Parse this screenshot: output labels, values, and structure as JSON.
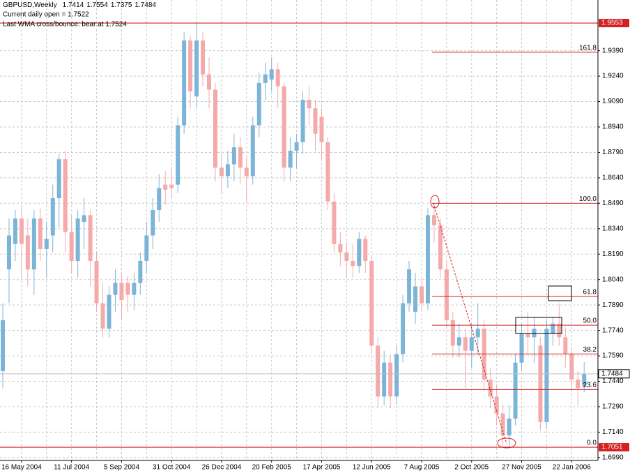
{
  "chart_data": {
    "type": "candlestick",
    "title": "GBPUSD,Weekly",
    "annotations": [
      "Current daily open = 1.7522",
      "Last WMA cross/bounce: bear at 1.7524"
    ],
    "categories": [
      null,
      null,
      null,
      "16 May 2004",
      null,
      null,
      null,
      null,
      null,
      null,
      null,
      "11 Jul 2004",
      null,
      null,
      null,
      null,
      null,
      null,
      null,
      "5 Sep 2004",
      null,
      null,
      null,
      null,
      null,
      null,
      null,
      "31 Oct 2004",
      null,
      null,
      null,
      null,
      null,
      null,
      null,
      "26 Dec 2004",
      null,
      null,
      null,
      null,
      null,
      null,
      null,
      "20 Feb 2005",
      null,
      null,
      null,
      null,
      null,
      null,
      null,
      "17 Apr 2005",
      null,
      null,
      null,
      null,
      null,
      null,
      null,
      "12 Jun 2005",
      null,
      null,
      null,
      null,
      null,
      null,
      null,
      "7 Aug 2005",
      null,
      null,
      null,
      null,
      null,
      null,
      null,
      "2 Oct 2005",
      null,
      null,
      null,
      null,
      null,
      null,
      null,
      "27 Nov 2005",
      null,
      null,
      null,
      null,
      null,
      null,
      null,
      "22 Jan 2006",
      null,
      null
    ],
    "open": [
      1.75,
      1.81,
      1.825,
      1.84,
      1.83,
      1.81,
      1.84,
      1.822,
      1.83,
      1.852,
      1.875,
      1.832,
      1.815,
      1.838,
      1.842,
      1.815,
      1.79,
      1.775,
      1.795,
      1.802,
      1.802,
      1.795,
      1.802,
      1.815,
      1.83,
      1.845,
      1.86,
      1.86,
      1.86,
      1.895,
      1.945,
      1.912,
      1.945,
      1.925,
      1.916,
      1.87,
      1.865,
      1.872,
      1.882,
      1.87,
      1.865,
      1.895,
      1.92,
      1.922,
      1.928,
      1.918,
      1.87,
      1.88,
      1.885,
      1.91,
      1.905,
      1.9,
      1.885,
      1.85,
      1.825,
      1.82,
      1.815,
      1.812,
      1.828,
      1.815,
      1.765,
      1.735,
      1.755,
      1.735,
      1.76,
      1.79,
      1.785,
      1.8,
      1.79,
      1.842,
      1.836,
      1.81,
      1.78,
      1.765,
      1.77,
      1.762,
      1.77,
      1.775,
      1.745,
      1.735,
      1.725,
      1.712,
      1.722,
      1.755,
      1.772,
      1.77,
      1.765,
      1.72,
      1.772,
      1.778,
      1.77,
      1.76,
      1.745,
      1.7414
    ],
    "high": [
      1.79,
      1.84,
      1.845,
      1.848,
      1.84,
      1.845,
      1.846,
      1.838,
      1.86,
      1.878,
      1.88,
      1.842,
      1.845,
      1.852,
      1.845,
      1.82,
      1.802,
      1.8,
      1.81,
      1.808,
      1.806,
      1.808,
      1.82,
      1.838,
      1.852,
      1.866,
      1.868,
      1.87,
      1.9,
      1.95,
      1.948,
      1.955,
      1.95,
      1.935,
      1.92,
      1.878,
      1.88,
      1.89,
      1.888,
      1.876,
      1.9,
      1.926,
      1.932,
      1.935,
      1.932,
      1.92,
      1.888,
      1.89,
      1.915,
      1.918,
      1.91,
      1.905,
      1.888,
      1.855,
      1.832,
      1.826,
      1.825,
      1.832,
      1.83,
      1.818,
      1.77,
      1.762,
      1.76,
      1.765,
      1.795,
      1.815,
      1.808,
      1.805,
      1.846,
      1.849,
      1.84,
      1.815,
      1.785,
      1.778,
      1.775,
      1.778,
      1.79,
      1.78,
      1.752,
      1.742,
      1.73,
      1.73,
      1.76,
      1.778,
      1.785,
      1.782,
      1.77,
      1.78,
      1.782,
      1.79,
      1.776,
      1.764,
      1.75,
      1.7554
    ],
    "low": [
      1.74,
      1.79,
      1.815,
      1.805,
      1.8,
      1.795,
      1.815,
      1.805,
      1.82,
      1.835,
      1.82,
      1.808,
      1.805,
      1.822,
      1.8,
      1.785,
      1.77,
      1.77,
      1.785,
      1.78,
      1.785,
      1.786,
      1.795,
      1.808,
      1.822,
      1.838,
      1.848,
      1.852,
      1.855,
      1.89,
      1.905,
      1.905,
      1.918,
      1.905,
      1.862,
      1.855,
      1.858,
      1.862,
      1.86,
      1.85,
      1.86,
      1.888,
      1.91,
      1.915,
      1.905,
      1.862,
      1.862,
      1.87,
      1.878,
      1.895,
      1.88,
      1.875,
      1.845,
      1.82,
      1.812,
      1.805,
      1.805,
      1.808,
      1.808,
      1.76,
      1.728,
      1.73,
      1.728,
      1.73,
      1.755,
      1.785,
      1.778,
      1.785,
      1.786,
      1.826,
      1.805,
      1.775,
      1.758,
      1.758,
      1.74,
      1.752,
      1.76,
      1.738,
      1.728,
      1.718,
      1.706,
      1.7051,
      1.718,
      1.75,
      1.76,
      1.755,
      1.715,
      1.716,
      1.765,
      1.765,
      1.752,
      1.738,
      1.73,
      1.7375
    ],
    "close": [
      1.78,
      1.83,
      1.84,
      1.825,
      1.81,
      1.84,
      1.822,
      1.828,
      1.852,
      1.875,
      1.832,
      1.815,
      1.84,
      1.842,
      1.815,
      1.79,
      1.775,
      1.795,
      1.802,
      1.792,
      1.795,
      1.802,
      1.815,
      1.83,
      1.845,
      1.858,
      1.857,
      1.858,
      1.895,
      1.945,
      1.915,
      1.945,
      1.925,
      1.916,
      1.87,
      1.865,
      1.872,
      1.882,
      1.87,
      1.865,
      1.895,
      1.92,
      1.925,
      1.928,
      1.918,
      1.87,
      1.88,
      1.885,
      1.91,
      1.905,
      1.89,
      1.885,
      1.85,
      1.825,
      1.82,
      1.815,
      1.812,
      1.828,
      1.815,
      1.765,
      1.735,
      1.755,
      1.735,
      1.76,
      1.79,
      1.81,
      1.8,
      1.79,
      1.842,
      1.836,
      1.81,
      1.78,
      1.765,
      1.77,
      1.762,
      1.77,
      1.775,
      1.745,
      1.735,
      1.725,
      1.712,
      1.722,
      1.755,
      1.772,
      1.77,
      1.775,
      1.72,
      1.775,
      1.778,
      1.77,
      1.76,
      1.745,
      1.74,
      1.7484
    ],
    "up_color": "#7cb4d8",
    "down_color": "#f4aaaa",
    "ylim": [
      1.6973,
      1.9689
    ],
    "yticks": [
      {
        "value": 1.939,
        "label": "1.9390"
      },
      {
        "value": 1.924,
        "label": "1.9240"
      },
      {
        "value": 1.909,
        "label": "1.9090"
      },
      {
        "value": 1.894,
        "label": "1.8940"
      },
      {
        "value": 1.879,
        "label": "1.8790"
      },
      {
        "value": 1.864,
        "label": "1.8640"
      },
      {
        "value": 1.849,
        "label": "1.8490"
      },
      {
        "value": 1.834,
        "label": "1.8340"
      },
      {
        "value": 1.819,
        "label": "1.8190"
      },
      {
        "value": 1.804,
        "label": "1.8040"
      },
      {
        "value": 1.789,
        "label": "1.7890"
      },
      {
        "value": 1.774,
        "label": "1.7740"
      },
      {
        "value": 1.759,
        "label": "1.7590"
      },
      {
        "value": 1.744,
        "label": "1.7440"
      },
      {
        "value": 1.729,
        "label": "1.7290"
      },
      {
        "value": 1.714,
        "label": "1.7140"
      },
      {
        "value": 1.699,
        "label": "1.6990"
      }
    ],
    "grid": true,
    "hlines": [
      1.9553,
      1.7051
    ],
    "hline_color": "#d42020",
    "fibo": {
      "color": "#d42020",
      "levels": [
        {
          "value": 1.9381,
          "label": "161.8"
        },
        {
          "value": 1.849,
          "label": "100.0"
        },
        {
          "value": 1.7941,
          "label": "61.8"
        },
        {
          "value": 1.7771,
          "label": "50.0"
        },
        {
          "value": 1.7601,
          "label": "38.2"
        },
        {
          "value": 1.7391,
          "label": "23.6"
        },
        {
          "value": 1.7051,
          "label": "0.0"
        }
      ]
    }
  }
}
